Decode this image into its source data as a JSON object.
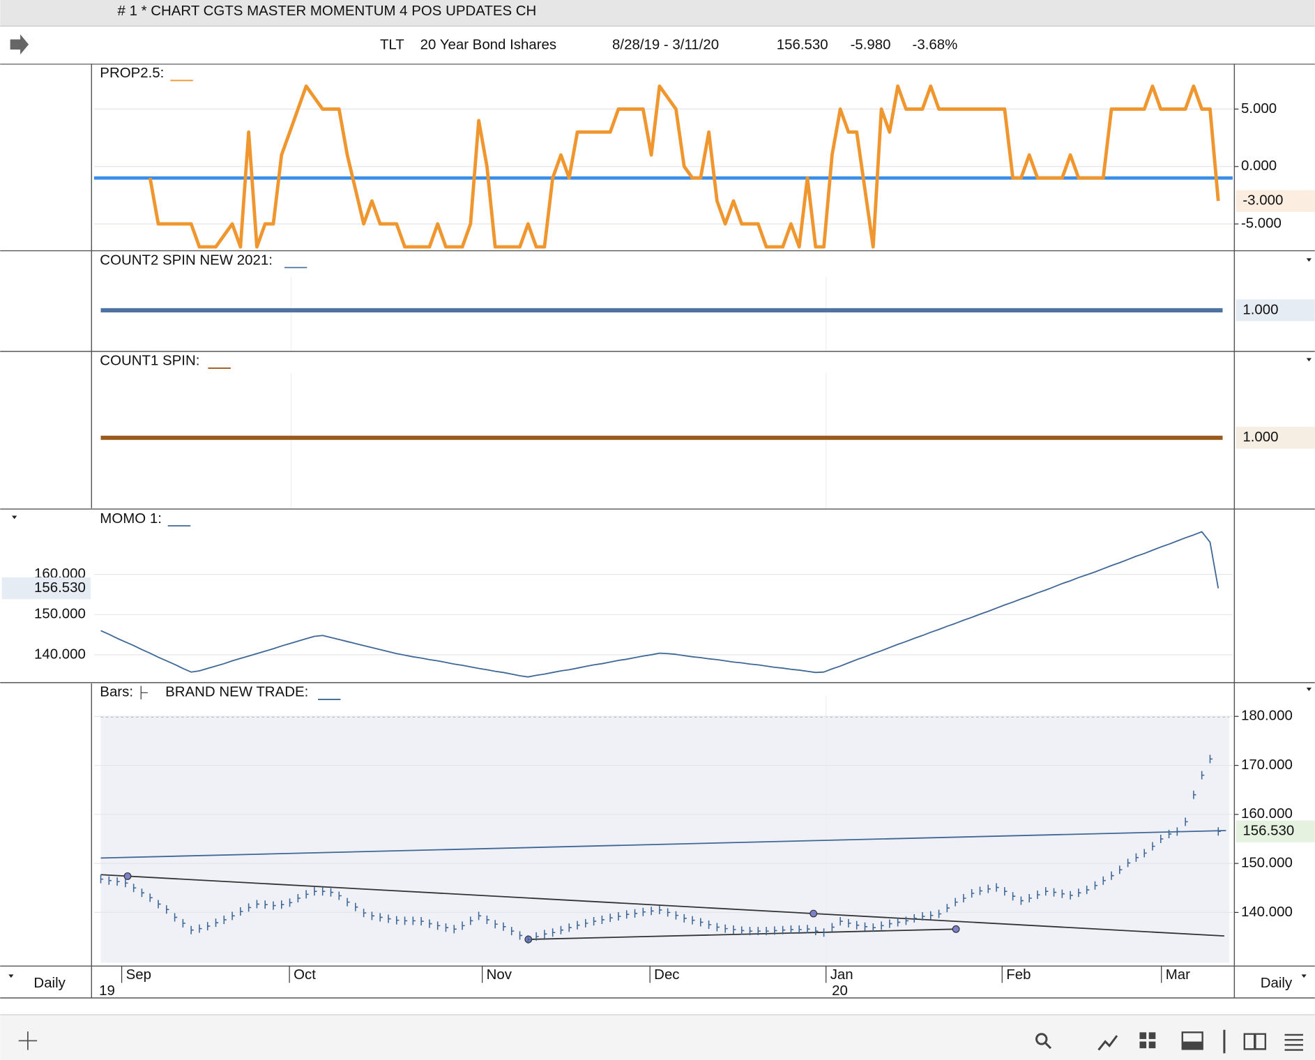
{
  "window_title": "# 1 * CHART CGTS MASTER MOMENTUM 4 POS UPDATES CH",
  "header": {
    "symbol": "TLT",
    "name": "20 Year Bond Ishares",
    "date_range": "8/28/19 - 3/11/20",
    "last": "156.530",
    "change": "-5.980",
    "change_pct": "-3.68%"
  },
  "prop": {
    "label": "PROP2.5:",
    "color": "#f0962e",
    "level": -1,
    "level_color": "#3b8ee8",
    "ylim": [
      -7.26,
      8.8
    ],
    "yticks": [
      {
        "value": -5,
        "label": "-5.000"
      },
      {
        "value": 0,
        "label": "0.000"
      },
      {
        "value": 5,
        "label": "5.000"
      }
    ],
    "values": [
      null,
      null,
      null,
      null,
      null,
      null,
      -1,
      -5,
      -5,
      -5,
      -5,
      -5,
      -7,
      -7,
      -7,
      -6,
      -5,
      -7,
      3,
      -7,
      -5,
      -5,
      1,
      3,
      5,
      7,
      6,
      5,
      5,
      5,
      1,
      -2,
      -5,
      -3,
      -5,
      -5,
      -5,
      -7,
      -7,
      -7,
      -7,
      -5,
      -7,
      -7,
      -7,
      -5,
      4,
      0,
      -7,
      -7,
      -7,
      -7,
      -5,
      -7,
      -7,
      -1,
      1,
      -1,
      3,
      3,
      3,
      3,
      3,
      5,
      5,
      5,
      5,
      1,
      7,
      6,
      5,
      0,
      -1,
      -1,
      3,
      -3,
      -5,
      -3,
      -5,
      -5,
      -5,
      -7,
      -7,
      -7,
      -5,
      -7,
      -1,
      -7,
      -7,
      1,
      5,
      3,
      3,
      -2,
      -7,
      5,
      3,
      7,
      5,
      5,
      5,
      7,
      5,
      5,
      5,
      5,
      5,
      5,
      5,
      5,
      5,
      -1,
      -1,
      1,
      -1,
      -1,
      -1,
      -1,
      1,
      -1,
      -1,
      -1,
      -1,
      5,
      5,
      5,
      5,
      5,
      7,
      5,
      5,
      5,
      5,
      7,
      5,
      5,
      -3
    ],
    "readout": -3,
    "readout_label": "-3.000"
  },
  "count2": {
    "label": "COUNT2 SPIN NEW 2021:",
    "color": "#4e73a3",
    "value": 1,
    "value_label": "1.000"
  },
  "count1": {
    "label": "COUNT1 SPIN:",
    "color": "#9a5a1e",
    "value": 1,
    "value_label": "1.000"
  },
  "momo": {
    "label": "MOMO 1:",
    "color": "#3e6796",
    "ylim": [
      133.5,
      175.2
    ],
    "yticks": [
      {
        "value": 140,
        "label": "140.000"
      },
      {
        "value": 150,
        "label": "150.000"
      },
      {
        "value": 160,
        "label": "160.000"
      }
    ],
    "values": [
      146,
      145.1,
      144.1,
      143.2,
      142.3,
      141.3,
      140.4,
      139.4,
      138.5,
      137.6,
      136.6,
      135.7,
      136.0,
      136.6,
      137.2,
      137.8,
      138.5,
      139.1,
      139.7,
      140.3,
      140.9,
      141.5,
      142.2,
      142.8,
      143.4,
      144.0,
      144.6,
      144.8,
      144.3,
      143.8,
      143.3,
      142.8,
      142.3,
      141.8,
      141.3,
      140.8,
      140.3,
      139.9,
      139.5,
      139.2,
      138.8,
      138.5,
      138.1,
      137.7,
      137.4,
      137.0,
      136.6,
      136.3,
      135.9,
      135.6,
      135.2,
      134.8,
      134.5,
      134.9,
      135.2,
      135.6,
      136.0,
      136.3,
      136.7,
      137.1,
      137.5,
      137.8,
      138.2,
      138.6,
      138.9,
      139.3,
      139.7,
      140.0,
      140.4,
      140.3,
      140.1,
      139.8,
      139.5,
      139.3,
      139.0,
      138.8,
      138.5,
      138.2,
      138.0,
      137.7,
      137.5,
      137.2,
      136.9,
      136.7,
      136.4,
      136.2,
      135.9,
      135.6,
      135.7,
      136.5,
      137.2,
      138.0,
      138.8,
      139.5,
      140.3,
      141.0,
      141.8,
      142.6,
      143.3,
      144.1,
      144.8,
      145.6,
      146.3,
      147.1,
      147.8,
      148.6,
      149.3,
      150.1,
      150.8,
      151.6,
      152.4,
      153.1,
      153.9,
      154.6,
      155.4,
      156.1,
      156.9,
      157.7,
      158.4,
      159.2,
      159.9,
      160.6,
      161.4,
      162.2,
      162.9,
      163.7,
      164.5,
      165.2,
      166.0,
      166.8,
      167.5,
      168.3,
      169.1,
      169.8,
      170.6,
      168,
      156.53
    ],
    "readout": 156.53,
    "readout_label": "156.530"
  },
  "bars": {
    "label": "Bars:",
    "study": "BRAND NEW TRADE:",
    "color": "#3e6796",
    "ylim": [
      129.4,
      186.2
    ],
    "yticks": [
      {
        "value": 140,
        "label": "140.000"
      },
      {
        "value": 150,
        "label": "150.000"
      },
      {
        "value": 160,
        "label": "160.000"
      },
      {
        "value": 170,
        "label": "170.000"
      },
      {
        "value": 180,
        "label": "180.000"
      }
    ],
    "values": [
      146.8,
      146.5,
      146.3,
      146.0,
      145.0,
      144.0,
      143.0,
      141.7,
      140.6,
      139.0,
      137.8,
      136.4,
      136.7,
      137.2,
      137.9,
      138.5,
      139.3,
      140.2,
      141.0,
      141.7,
      141.6,
      141.4,
      141.6,
      142.0,
      142.9,
      143.7,
      144.3,
      144.3,
      144.1,
      143.4,
      142.1,
      141.1,
      139.9,
      139.3,
      139.0,
      138.7,
      138.4,
      138.3,
      138.3,
      138.2,
      137.7,
      137.3,
      136.9,
      136.6,
      137.3,
      138.3,
      139.3,
      138.5,
      137.6,
      137.1,
      136.2,
      135.3,
      134.5,
      135.1,
      135.6,
      135.9,
      136.4,
      136.9,
      137.4,
      137.8,
      138.2,
      138.5,
      138.9,
      139.2,
      139.6,
      139.8,
      140.1,
      140.3,
      140.5,
      140.0,
      139.4,
      138.8,
      138.4,
      138.0,
      137.5,
      137.0,
      136.7,
      136.5,
      136.3,
      136.2,
      136.2,
      136.2,
      136.3,
      136.4,
      136.5,
      136.5,
      136.6,
      136.2,
      135.9,
      137.0,
      138.2,
      137.8,
      137.4,
      137.1,
      136.9,
      137.3,
      137.7,
      138.0,
      138.3,
      138.8,
      139.2,
      139.4,
      139.7,
      140.9,
      142.1,
      142.9,
      143.9,
      144.4,
      144.8,
      145.1,
      144.3,
      143.3,
      142.4,
      142.9,
      143.6,
      144.3,
      144.1,
      143.8,
      143.5,
      144.0,
      144.6,
      145.5,
      146.5,
      147.5,
      148.7,
      150.1,
      151.2,
      152.1,
      153.5,
      155.0,
      156.0,
      156.5,
      158.5,
      164.0,
      168.0,
      171.3,
      156.53
    ],
    "ma": {
      "start": 151.1,
      "end": 156.7
    },
    "trendlines": [
      {
        "start": 147.7,
        "end": 135.2
      },
      {
        "start": 134.5,
        "end": 136.6
      }
    ],
    "readout": 156.53,
    "readout_label": "156.530"
  },
  "x_axis": {
    "months": [
      "Sep",
      "Oct",
      "Nov",
      "Dec",
      "Jan",
      "Feb",
      "Mar"
    ],
    "years": [
      "19",
      "20"
    ],
    "period": "Daily"
  }
}
